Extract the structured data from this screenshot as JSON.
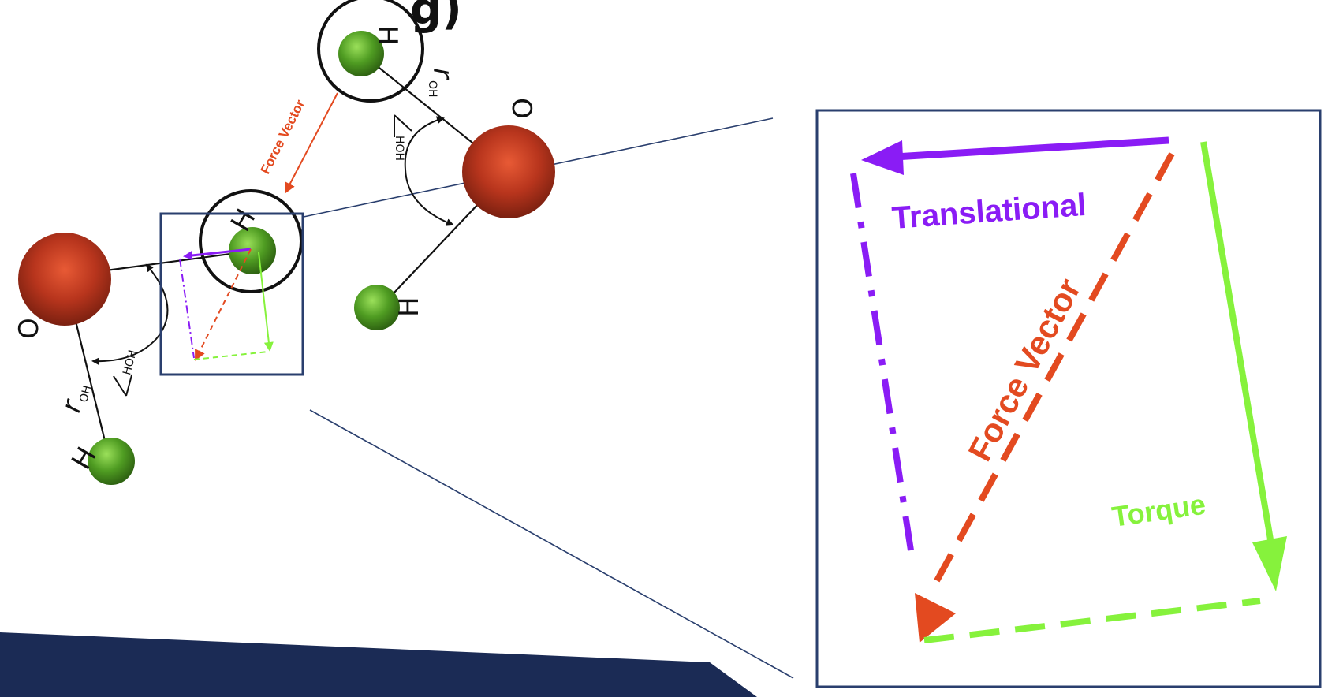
{
  "colors": {
    "oxygen": "#b8351d",
    "hydrogen": "#4f9c22",
    "force": "#e34a20",
    "translational": "#8a1cf5",
    "torque": "#86f23c",
    "frame": "#2a3f6e",
    "band": "#1b2b55"
  },
  "labels": {
    "title_fragment": "g)",
    "force_vector_small": "Force Vector",
    "oxygen": "O",
    "hydrogen": "H",
    "r_oh_main": "r",
    "r_oh_sub": "OH",
    "angle_hoh": "HOH",
    "inset_translational": "Translational",
    "inset_force_vector": "Force Vector",
    "inset_torque": "Torque"
  }
}
